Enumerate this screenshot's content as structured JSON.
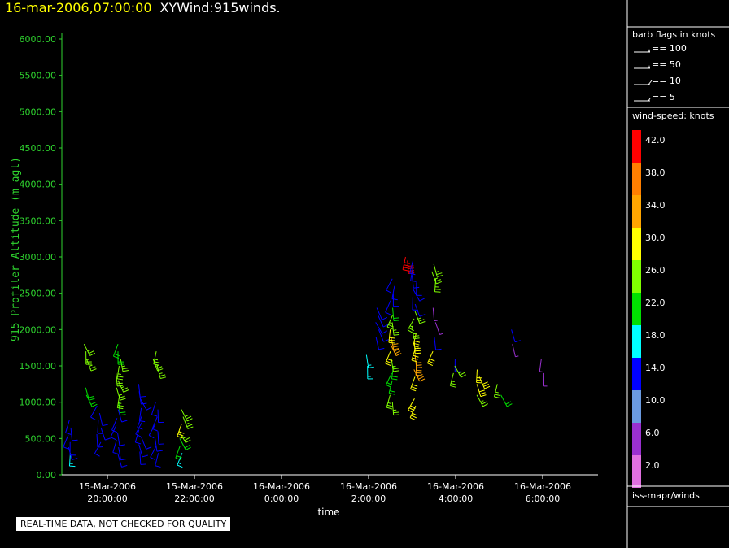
{
  "header": {
    "date": "16-mar-2006,07:00:00",
    "title": "XYWind:915winds."
  },
  "chart_data": {
    "type": "scatter",
    "ylabel": "915 Profiler Altitude (m agl)",
    "xlabel": "time",
    "ylim": [
      0,
      6000
    ],
    "yticks": [
      "0.00",
      "500.00",
      "1000.00",
      "1500.00",
      "2000.00",
      "2500.00",
      "3000.00",
      "3500.00",
      "4000.00",
      "4500.00",
      "5000.00",
      "5500.00",
      "6000.00"
    ],
    "xticks": [
      {
        "date": "15-Mar-2006",
        "time": "20:00:00"
      },
      {
        "date": "15-Mar-2006",
        "time": "22:00:00"
      },
      {
        "date": "16-Mar-2006",
        "time": "0:00:00"
      },
      {
        "date": "16-Mar-2006",
        "time": "2:00:00"
      },
      {
        "date": "16-Mar-2006",
        "time": "4:00:00"
      },
      {
        "date": "16-Mar-2006",
        "time": "6:00:00"
      }
    ],
    "xlim_hours_rel_20": [
      -1.0,
      11.3
    ],
    "profiles": [
      {
        "t": -0.85,
        "levels": [
          [
            300,
            18
          ],
          [
            380,
            14
          ],
          [
            450,
            14
          ],
          [
            550,
            14
          ],
          [
            650,
            14
          ],
          [
            750,
            14
          ]
        ]
      },
      {
        "t": -0.5,
        "levels": [
          [
            1100,
            22
          ],
          [
            1200,
            22
          ],
          [
            1600,
            26
          ],
          [
            1700,
            26
          ],
          [
            1800,
            26
          ]
        ]
      },
      {
        "t": -0.2,
        "levels": [
          [
            450,
            14
          ],
          [
            560,
            14
          ],
          [
            650,
            14
          ],
          [
            750,
            14
          ],
          [
            850,
            14
          ],
          [
            950,
            14
          ]
        ]
      },
      {
        "t": 0.25,
        "levels": [
          [
            280,
            14
          ],
          [
            380,
            14
          ],
          [
            480,
            14
          ],
          [
            580,
            14
          ],
          [
            680,
            14
          ],
          [
            780,
            14
          ],
          [
            900,
            14
          ],
          [
            1000,
            22
          ],
          [
            1100,
            26
          ],
          [
            1200,
            26
          ],
          [
            1300,
            26
          ],
          [
            1400,
            26
          ],
          [
            1500,
            26
          ],
          [
            1600,
            26
          ],
          [
            1700,
            22
          ],
          [
            1800,
            22
          ]
        ]
      },
      {
        "t": 0.75,
        "levels": [
          [
            320,
            14
          ],
          [
            420,
            14
          ],
          [
            520,
            14
          ],
          [
            620,
            14
          ],
          [
            720,
            14
          ],
          [
            820,
            14
          ],
          [
            920,
            14
          ],
          [
            1050,
            14
          ],
          [
            1150,
            14
          ],
          [
            1250,
            14
          ]
        ]
      },
      {
        "t": 1.15,
        "levels": [
          [
            300,
            14
          ],
          [
            400,
            14
          ],
          [
            500,
            14
          ],
          [
            600,
            14
          ],
          [
            700,
            14
          ],
          [
            800,
            14
          ],
          [
            900,
            14
          ],
          [
            1000,
            14
          ]
        ]
      },
      {
        "t": 1.1,
        "levels": [
          [
            1500,
            26
          ],
          [
            1600,
            26
          ],
          [
            1700,
            26
          ]
        ]
      },
      {
        "t": 1.7,
        "levels": [
          [
            300,
            18
          ],
          [
            400,
            22
          ],
          [
            500,
            22
          ],
          [
            600,
            26
          ],
          [
            700,
            30
          ],
          [
            800,
            26
          ],
          [
            900,
            26
          ]
        ]
      },
      {
        "t": 6.0,
        "levels": [
          [
            1500,
            18
          ],
          [
            1650,
            18
          ]
        ]
      },
      {
        "t": 6.2,
        "levels": [
          [
            1900,
            14
          ],
          [
            2000,
            14
          ],
          [
            2100,
            14
          ],
          [
            2200,
            14
          ],
          [
            2300,
            14
          ]
        ]
      },
      {
        "t": 6.55,
        "levels": [
          [
            1000,
            26
          ],
          [
            1100,
            26
          ],
          [
            1300,
            22
          ],
          [
            1400,
            22
          ],
          [
            1500,
            22
          ],
          [
            1600,
            26
          ],
          [
            1700,
            30
          ],
          [
            1800,
            34
          ],
          [
            1900,
            34
          ],
          [
            2000,
            30
          ],
          [
            2100,
            26
          ],
          [
            2200,
            26
          ],
          [
            2300,
            22
          ],
          [
            2400,
            14
          ],
          [
            2500,
            14
          ],
          [
            2600,
            14
          ],
          [
            2700,
            14
          ]
        ]
      },
      {
        "t": 6.85,
        "levels": [
          [
            2950,
            42
          ],
          [
            3000,
            42
          ]
        ]
      },
      {
        "t": 7.05,
        "levels": [
          [
            950,
            30
          ],
          [
            1050,
            30
          ],
          [
            1350,
            30
          ],
          [
            1450,
            34
          ],
          [
            1550,
            34
          ],
          [
            1650,
            34
          ],
          [
            1750,
            30
          ],
          [
            1850,
            30
          ],
          [
            1950,
            30
          ],
          [
            2050,
            26
          ],
          [
            2150,
            26
          ],
          [
            2250,
            26
          ],
          [
            2350,
            14
          ],
          [
            2450,
            14
          ],
          [
            2550,
            14
          ],
          [
            2650,
            14
          ],
          [
            2750,
            14
          ],
          [
            2850,
            14
          ],
          [
            2950,
            14
          ]
        ]
      },
      {
        "t": 7.5,
        "levels": [
          [
            1700,
            30
          ],
          [
            1900,
            14
          ],
          [
            2100,
            6
          ],
          [
            2300,
            6
          ],
          [
            2700,
            26
          ],
          [
            2800,
            26
          ],
          [
            2900,
            26
          ]
        ]
      },
      {
        "t": 8.0,
        "levels": [
          [
            1600,
            14
          ],
          [
            1500,
            26
          ],
          [
            1400,
            26
          ]
        ]
      },
      {
        "t": 8.5,
        "levels": [
          [
            1450,
            30
          ],
          [
            1350,
            30
          ],
          [
            1250,
            30
          ],
          [
            1100,
            26
          ]
        ]
      },
      {
        "t": 9.0,
        "levels": [
          [
            1250,
            26
          ],
          [
            1100,
            22
          ]
        ]
      },
      {
        "t": 9.3,
        "levels": [
          [
            1800,
            6
          ],
          [
            2000,
            14
          ]
        ]
      },
      {
        "t": 10.0,
        "levels": [
          [
            1400,
            6
          ],
          [
            1600,
            6
          ]
        ]
      }
    ]
  },
  "legend": {
    "barb_title": "barb flags in knots",
    "barbs": [
      {
        "label": "== 100",
        "kind": "flag"
      },
      {
        "label": "== 50",
        "kind": "flag"
      },
      {
        "label": "== 10",
        "kind": "full"
      },
      {
        "label": "== 5",
        "kind": "half"
      }
    ],
    "speed_title": "wind-speed: knots",
    "scale": [
      {
        "label": "42.0",
        "color": "#ff0000"
      },
      {
        "label": "38.0",
        "color": "#ff7f00"
      },
      {
        "label": "34.0",
        "color": "#ffa500"
      },
      {
        "label": "30.0",
        "color": "#ffff00"
      },
      {
        "label": "26.0",
        "color": "#80ff00"
      },
      {
        "label": "22.0",
        "color": "#00e000"
      },
      {
        "label": "18.0",
        "color": "#00ffff"
      },
      {
        "label": "14.0",
        "color": "#0000ff"
      },
      {
        "label": "10.0",
        "color": "#6a9ae0"
      },
      {
        "label": "6.0",
        "color": "#9a30d0"
      },
      {
        "label": "2.0",
        "color": "#e070e0"
      }
    ],
    "source": "iss-mapr/winds"
  },
  "footer": {
    "quality_note": "REAL-TIME DATA, NOT CHECKED FOR QUALITY"
  }
}
